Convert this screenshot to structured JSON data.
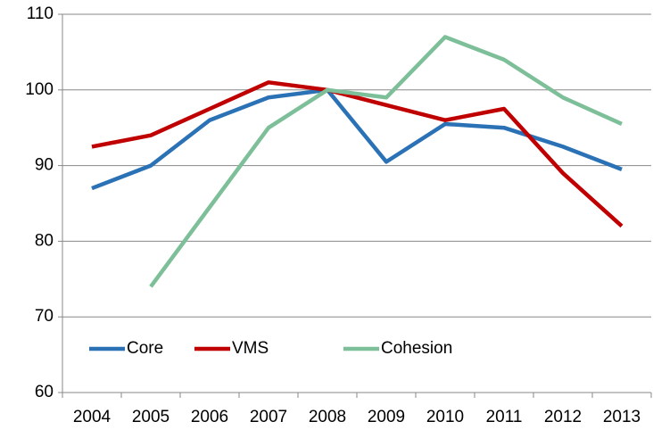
{
  "chart_data": {
    "type": "line",
    "categories": [
      "2004",
      "2005",
      "2006",
      "2007",
      "2008",
      "2009",
      "2010",
      "2011",
      "2012",
      "2013"
    ],
    "series": [
      {
        "name": "Core",
        "color": "#2a72b5",
        "values": [
          87,
          90,
          96,
          99,
          100,
          90.5,
          95.5,
          95,
          92.5,
          89.5
        ]
      },
      {
        "name": "VMS",
        "color": "#c00000",
        "values": [
          92.5,
          94,
          97.5,
          101,
          100,
          98,
          96,
          97.5,
          89,
          82
        ]
      },
      {
        "name": "Cohesion",
        "color": "#7dbf98",
        "values": [
          null,
          74,
          84.5,
          95,
          100,
          99,
          107,
          104,
          99,
          95.5
        ]
      }
    ],
    "ylim": [
      60,
      110
    ],
    "yticks": [
      60,
      70,
      80,
      90,
      100,
      110
    ],
    "grid": true,
    "legend": "lower-left"
  }
}
